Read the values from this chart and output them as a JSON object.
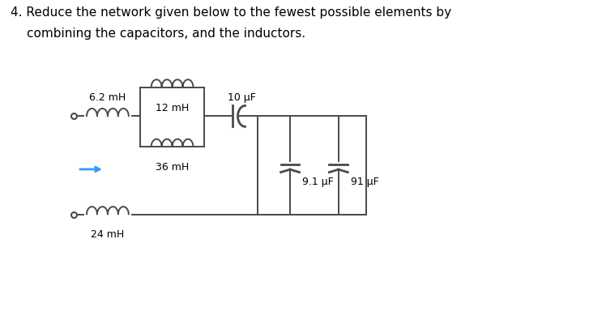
{
  "title_line1": "4. Reduce the network given below to the fewest possible elements by",
  "title_line2": "   combining the capacitors, and the inductors.",
  "title_fontsize": 11.0,
  "bg_color": "#ffffff",
  "line_color": "#4a4a4a",
  "arrow_color": "#3399ff",
  "label_6_2mH": "6.2 mH",
  "label_12mH": "12 mH",
  "label_36mH": "36 mH",
  "label_24mH": "24 mH",
  "label_10uF": "10 μF",
  "label_9_1uF": "9.1 μF",
  "label_91uF": "91 μF",
  "label_fontsize": 9.0
}
